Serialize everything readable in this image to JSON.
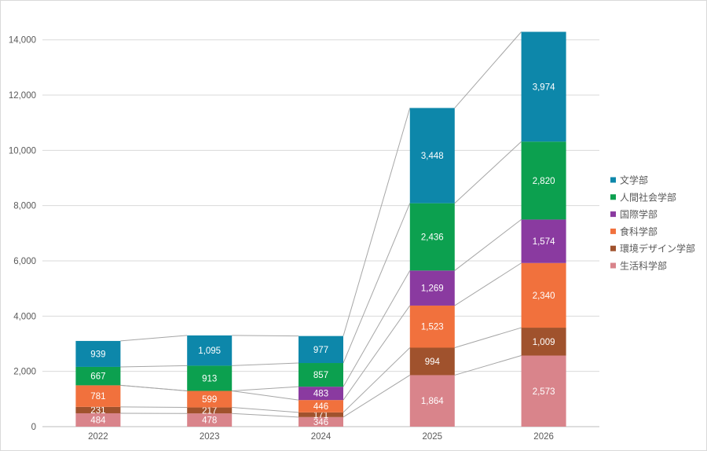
{
  "chart_data": {
    "type": "bar",
    "stacked": true,
    "title": "",
    "xlabel": "",
    "ylabel": "",
    "categories": [
      "2022",
      "2023",
      "2024",
      "2025",
      "2026"
    ],
    "series": [
      {
        "name": "生活科学部",
        "color": "#d9848b",
        "values": [
          484,
          478,
          346,
          1864,
          2573
        ]
      },
      {
        "name": "環境デザイン学部",
        "color": "#a0522d",
        "values": [
          231,
          217,
          171,
          994,
          1009
        ]
      },
      {
        "name": "食科学部",
        "color": "#f1713d",
        "values": [
          781,
          599,
          446,
          1523,
          2340
        ]
      },
      {
        "name": "国際学部",
        "color": "#8a3aa0",
        "values": [
          0,
          0,
          483,
          1269,
          1574
        ]
      },
      {
        "name": "人間社会学部",
        "color": "#0ca04f",
        "values": [
          667,
          913,
          857,
          2436,
          2820
        ]
      },
      {
        "name": "文学部",
        "color": "#0d87aa",
        "values": [
          939,
          1095,
          977,
          3448,
          3974
        ]
      }
    ],
    "segment_labels": {
      "2022": [
        "484",
        "231",
        "781",
        "",
        "667",
        "939"
      ],
      "2023": [
        "478",
        "217",
        "599",
        "",
        "913",
        "1,095"
      ],
      "2024": [
        "346",
        "171",
        "446",
        "483",
        "857",
        "977"
      ],
      "2025": [
        "1,864",
        "994",
        "1,523",
        "1,269",
        "2,436",
        "3,448"
      ],
      "2026": [
        "2,573",
        "1,009",
        "2,340",
        "1,574",
        "2,820",
        "3,974"
      ]
    },
    "legend": [
      "文学部",
      "人間社会学部",
      "国際学部",
      "食科学部",
      "環境デザイン学部",
      "生活科学部"
    ],
    "legend_position": "right",
    "y_ticks": [
      {
        "value": 0,
        "label": "0"
      },
      {
        "value": 2000,
        "label": "2,000"
      },
      {
        "value": 4000,
        "label": "4,000"
      },
      {
        "value": 6000,
        "label": "6,000"
      },
      {
        "value": 8000,
        "label": "8,000"
      },
      {
        "value": 10000,
        "label": "10,000"
      },
      {
        "value": 12000,
        "label": "12,000"
      },
      {
        "value": 14000,
        "label": "14,000"
      }
    ],
    "ylim": [
      0,
      14000
    ],
    "grid": true,
    "series_lines": true
  },
  "colors": {
    "background": "#ffffff",
    "border": "#d9d9d9",
    "gridline": "#d9d9d9",
    "axis_line": "#bdbdbd",
    "series_line": "#a6a6a6",
    "axis_text": "#595959",
    "legend_text": "#595959",
    "value_label_text": "#ffffff"
  }
}
